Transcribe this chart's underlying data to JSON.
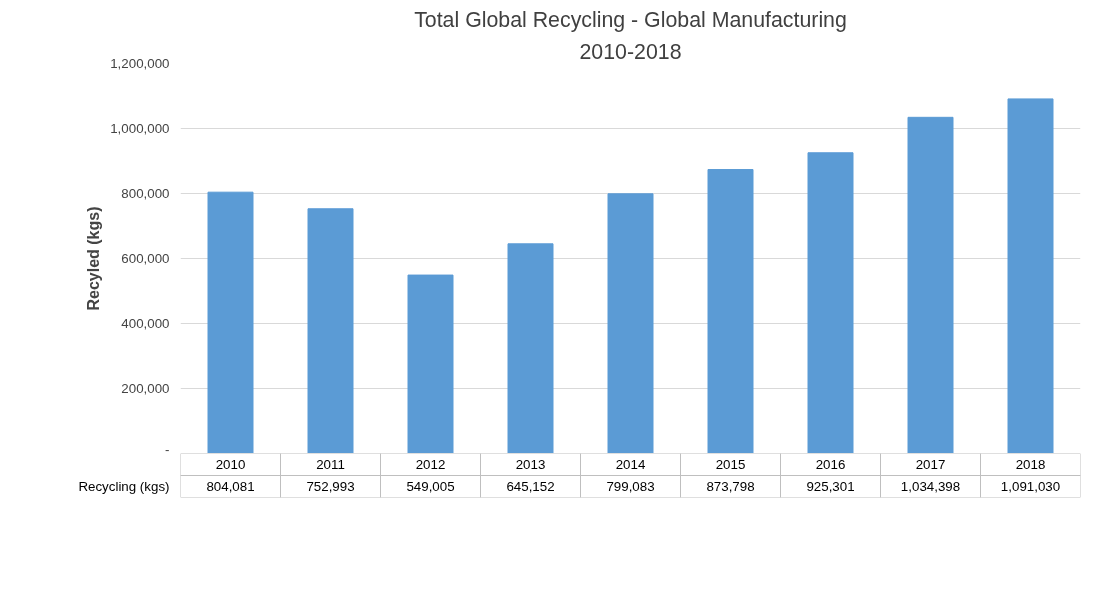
{
  "chart_data": {
    "type": "bar",
    "title": "Total Global Recycling - Global Manufacturing",
    "subtitle": "2010-2018",
    "ylabel": "Recyled (kgs)",
    "categories": [
      "2010",
      "2011",
      "2012",
      "2013",
      "2014",
      "2015",
      "2016",
      "2017",
      "2018"
    ],
    "series": [
      {
        "name": "Recycling (kgs)",
        "color": "#5b9bd5",
        "values": [
          804081,
          752993,
          549005,
          645152,
          799083,
          873798,
          925301,
          1034398,
          1091030
        ],
        "value_labels": [
          "804,081",
          "752,993",
          "549,005",
          "645,152",
          "799,083",
          "873,798",
          "925,301",
          "1,034,398",
          "1,091,030"
        ]
      }
    ],
    "ylim": [
      0,
      1200000
    ],
    "yticks": [
      {
        "value": 0,
        "label": "-"
      },
      {
        "value": 200000,
        "label": "200,000"
      },
      {
        "value": 400000,
        "label": "400,000"
      },
      {
        "value": 600000,
        "label": "600,000"
      },
      {
        "value": 800000,
        "label": "800,000"
      },
      {
        "value": 1000000,
        "label": "1,000,000"
      },
      {
        "value": 1200000,
        "label": "1,200,000"
      }
    ],
    "grid": "y"
  }
}
